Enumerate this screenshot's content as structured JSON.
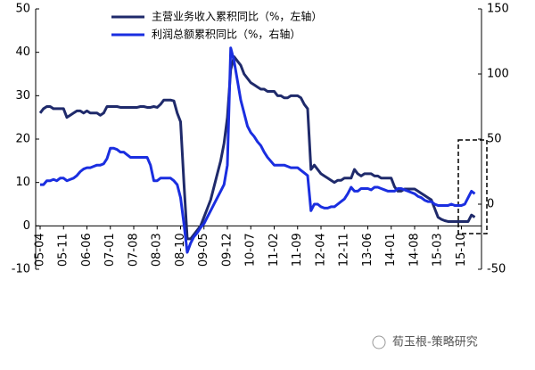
{
  "chart_data": {
    "type": "line",
    "categories": [
      "05-04",
      null,
      null,
      null,
      null,
      null,
      null,
      "05-11",
      null,
      null,
      null,
      null,
      null,
      null,
      "06-06",
      null,
      null,
      null,
      null,
      null,
      null,
      "07-01",
      null,
      null,
      null,
      null,
      null,
      null,
      "07-08",
      null,
      null,
      null,
      null,
      null,
      null,
      "08-03",
      null,
      null,
      null,
      null,
      null,
      null,
      "08-10",
      null,
      null,
      null,
      null,
      null,
      null,
      "09-05",
      null,
      null,
      null,
      null,
      null,
      null,
      "09-12",
      null,
      null,
      null,
      null,
      null,
      null,
      "10-07",
      null,
      null,
      null,
      null,
      null,
      null,
      "11-02",
      null,
      null,
      null,
      null,
      null,
      null,
      "11-09",
      null,
      null,
      null,
      null,
      null,
      null,
      "12-04",
      null,
      null,
      null,
      null,
      null,
      null,
      "12-11",
      null,
      null,
      null,
      null,
      null,
      null,
      "13-06",
      null,
      null,
      null,
      null,
      null,
      null,
      "14-01",
      null,
      null,
      null,
      null,
      null,
      null,
      "14-08",
      null,
      null,
      null,
      null,
      null,
      null,
      "15-03",
      null,
      null,
      null,
      null,
      null,
      null,
      "15-10",
      null,
      null,
      null,
      null
    ],
    "series": [
      {
        "name": "主营业务收入累积同比（%，左轴）",
        "color": "#1f2a6b",
        "axis": "y",
        "values": [
          26,
          27,
          27.5,
          27.5,
          27,
          27,
          27,
          27,
          25,
          25.5,
          26,
          26.5,
          26.5,
          26,
          26.5,
          26,
          26,
          26,
          25.5,
          26,
          27.5,
          27.5,
          27.5,
          27.5,
          27.3,
          27.3,
          27.3,
          27.3,
          27.3,
          27.3,
          27.5,
          27.5,
          27.3,
          27.3,
          27.5,
          27.3,
          28,
          29,
          29,
          29,
          28.8,
          26,
          24,
          10,
          -3,
          -3,
          -2,
          -1,
          0,
          2,
          4,
          6,
          9,
          12,
          15,
          19,
          25,
          36,
          39,
          38,
          37,
          35,
          34,
          33,
          32.5,
          32,
          31.5,
          31.5,
          31,
          31,
          31,
          30,
          30,
          29.5,
          29.5,
          30,
          30,
          30,
          29.5,
          28,
          27,
          13,
          14,
          13,
          12,
          11.5,
          11,
          10.5,
          10,
          10.5,
          10.5,
          11,
          11,
          11,
          13,
          12,
          11.5,
          12,
          12,
          12,
          11.5,
          11.5,
          11,
          11,
          11,
          11,
          9,
          8,
          8,
          8.5,
          8.5,
          8.5,
          8.5,
          8,
          7.5,
          7,
          6.5,
          6,
          4,
          2,
          1.5,
          1.2,
          1,
          1,
          1,
          1,
          1,
          1,
          1,
          2.5,
          2
        ]
      },
      {
        "name": "利润总额累积同比（%，右轴）",
        "color": "#1a2ee0",
        "axis": "y2",
        "values": [
          15,
          15,
          18,
          18,
          19,
          18,
          20,
          20,
          18,
          19,
          20,
          22,
          25,
          27,
          28,
          28,
          29,
          30,
          30,
          31,
          35,
          43,
          43,
          42,
          40,
          40,
          38,
          36,
          36,
          36,
          36,
          36,
          36,
          30,
          18,
          18,
          20,
          20,
          20,
          20,
          18,
          15,
          5,
          -15,
          -37,
          -30,
          -25,
          -22,
          -18,
          -15,
          -10,
          -5,
          0,
          5,
          10,
          15,
          30,
          120,
          110,
          95,
          80,
          70,
          60,
          55,
          52,
          48,
          45,
          40,
          36,
          33,
          30,
          30,
          30,
          30,
          29,
          28,
          28,
          28,
          26,
          24,
          22,
          -5,
          0,
          0,
          -2,
          -3,
          -3,
          -2,
          -2,
          0,
          2,
          4,
          8,
          13,
          10,
          10,
          12,
          12,
          12,
          11,
          13,
          13,
          12,
          11,
          10,
          10,
          10,
          12,
          12,
          11,
          10,
          9,
          8,
          6,
          5,
          3,
          2,
          2,
          0,
          -1,
          -1,
          -1,
          -1,
          0,
          -1,
          -1,
          -1,
          0,
          5,
          10,
          8
        ]
      }
    ],
    "ylim": [
      -10,
      50
    ],
    "yticks": [
      -10,
      0,
      10,
      20,
      30,
      40,
      50
    ],
    "y2lim": [
      -50,
      150
    ],
    "y2ticks": [
      -50,
      0,
      50,
      100,
      150
    ],
    "watermark": "荀玉根-策略研究"
  }
}
